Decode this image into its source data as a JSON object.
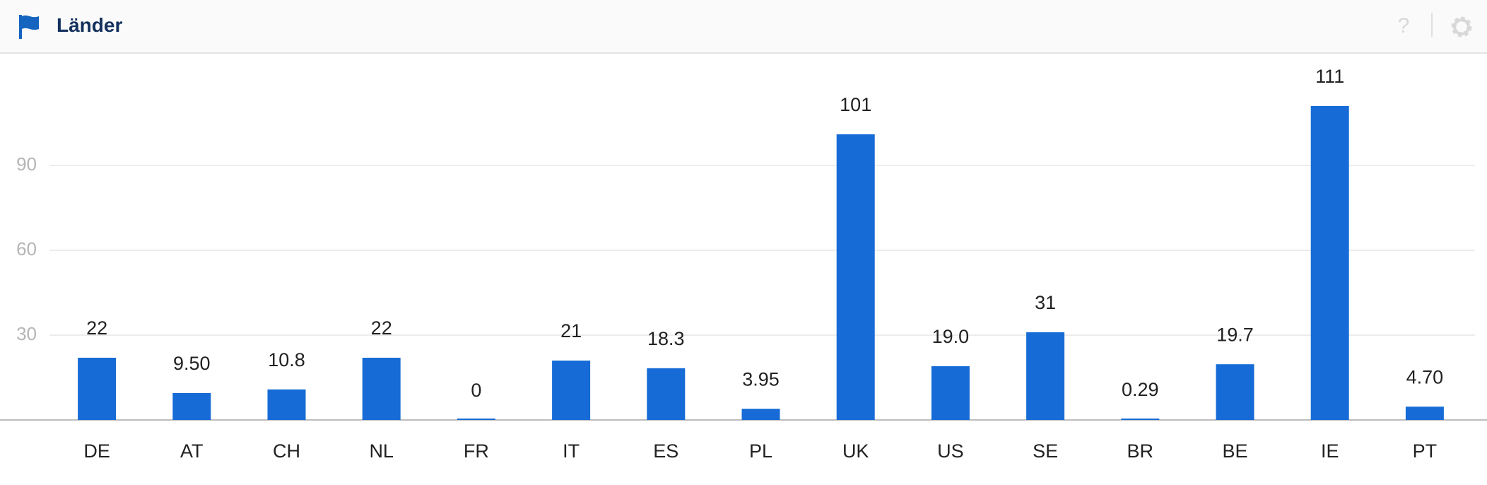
{
  "chart_data": {
    "type": "bar",
    "title": "Länder",
    "categories": [
      "DE",
      "AT",
      "CH",
      "NL",
      "FR",
      "IT",
      "ES",
      "PL",
      "UK",
      "US",
      "SE",
      "BR",
      "BE",
      "IE",
      "PT"
    ],
    "values": [
      22,
      9.5,
      10.8,
      22,
      0,
      21,
      18.3,
      3.95,
      101,
      19.0,
      31,
      0.29,
      19.7,
      111,
      4.7
    ],
    "value_labels": [
      "22",
      "9.50",
      "10.8",
      "22",
      "0",
      "21",
      "18.3",
      "3.95",
      "101",
      "19.0",
      "31",
      "0.29",
      "19.7",
      "111",
      "4.70"
    ],
    "color": "#166bd6",
    "ylim": [
      0,
      125
    ],
    "yticks": [
      30,
      60,
      90
    ],
    "grid": true
  }
}
